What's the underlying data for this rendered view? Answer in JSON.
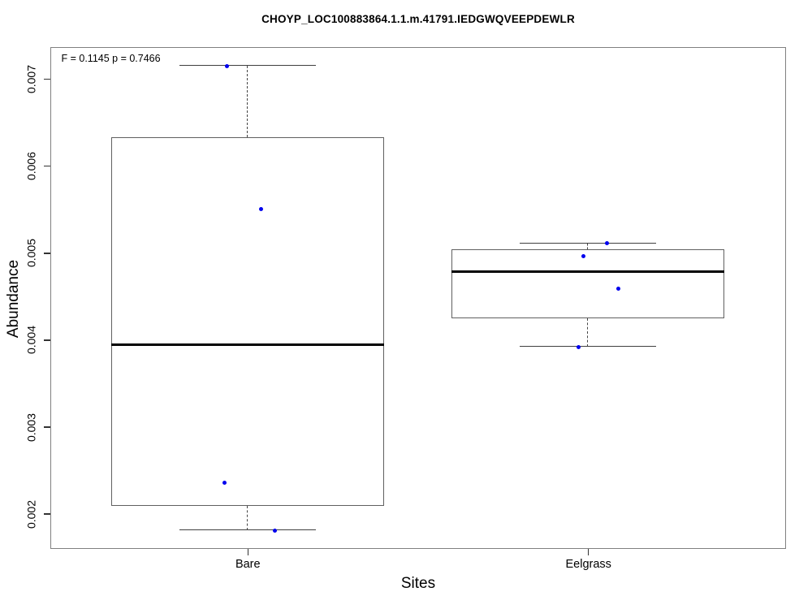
{
  "chart_data": {
    "type": "boxplot",
    "title": "CHOYP_LOC100883864.1.1.m.41791.IEDGWQVEEPDEWLR",
    "xlabel": "Sites",
    "ylabel": "Abundance",
    "annotation": "F = 0.1145 p = 0.7466",
    "ylim": [
      0.0016,
      0.00737
    ],
    "xlim": [
      0.42,
      2.58
    ],
    "ytick_labels": [
      "0.002",
      "0.003",
      "0.004",
      "0.005",
      "0.006",
      "0.007"
    ],
    "ytick_values": [
      0.002,
      0.003,
      0.004,
      0.005,
      0.006,
      0.007
    ],
    "grid": false,
    "box_width": 0.8,
    "staple_width": 0.4,
    "colors": {
      "point": "#0000EE",
      "box_border": "#606060",
      "median": "#000000",
      "whisker": "#404040",
      "frame": "#808080"
    },
    "groups": [
      {
        "label": "Bare",
        "position": 1,
        "stats": {
          "whisker_low": 0.00181,
          "q1": 0.00209,
          "median": 0.00394,
          "q3": 0.00633,
          "whisker_high": 0.00715
        },
        "points": [
          [
            0.94,
            0.00715
          ],
          [
            1.04,
            0.0055
          ],
          [
            0.933,
            0.00236
          ],
          [
            1.08,
            0.00181
          ]
        ]
      },
      {
        "label": "Eelgrass",
        "position": 2,
        "stats": {
          "whisker_low": 0.00392,
          "q1": 0.00425,
          "median": 0.00478,
          "q3": 0.00504,
          "whisker_high": 0.00511
        },
        "points": [
          [
            2.056,
            0.00511
          ],
          [
            1.986,
            0.00496
          ],
          [
            2.089,
            0.00459
          ],
          [
            1.972,
            0.00392
          ]
        ]
      }
    ]
  }
}
